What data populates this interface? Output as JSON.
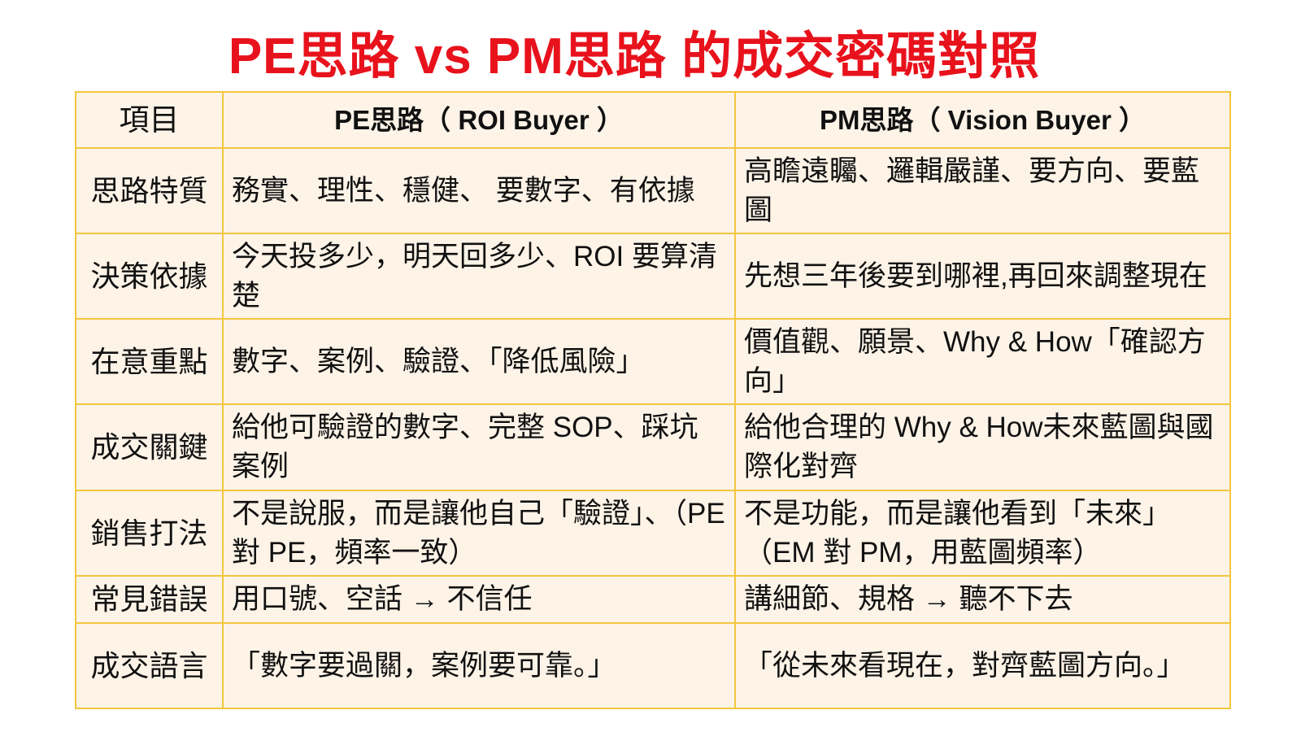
{
  "title": "PE思路 vs PM思路 的成交密碼對照",
  "colors": {
    "title": "#e8121c",
    "border": "#f3c63f",
    "cell_background": "#fdf3e7"
  },
  "table": {
    "headers": [
      "項目",
      "PE思路（ ROI Buyer ）",
      "PM思路（ Vision Buyer ）"
    ],
    "rows": [
      {
        "label": "思路特質",
        "pe": "務實、理性、穩健、 要數字、有依據",
        "pm": "高瞻遠矚、邏輯嚴謹、要方向、要藍圖"
      },
      {
        "label": "決策依據",
        "pe": "今天投多少，明天回多少、ROI 要算清楚",
        "pm": "先想三年後要到哪裡,再回來調整現在"
      },
      {
        "label": "在意重點",
        "pe": "數字、案例、驗證、「降低風險」",
        "pm": "價值觀、願景、Why & How「確認方向」"
      },
      {
        "label": "成交關鍵",
        "pe": "給他可驗證的數字、完整 SOP、踩坑案例",
        "pm": "給他合理的 Why & How未來藍圖與國際化對齊"
      },
      {
        "label": "銷售打法",
        "pe": "不是說服，而是讓他自己「驗證」、（PE 對 PE，頻率一致）",
        "pm": "不是功能，而是讓他看到「未來」（EM 對 PM，用藍圖頻率）"
      },
      {
        "label": "常見錯誤",
        "pe": "用口號、空話 → 不信任",
        "pm": "講細節、規格 → 聽不下去"
      },
      {
        "label": "成交語言",
        "pe": "「數字要過關，案例要可靠。」",
        "pm": "「從未來看現在，對齊藍圖方向。」"
      }
    ]
  }
}
